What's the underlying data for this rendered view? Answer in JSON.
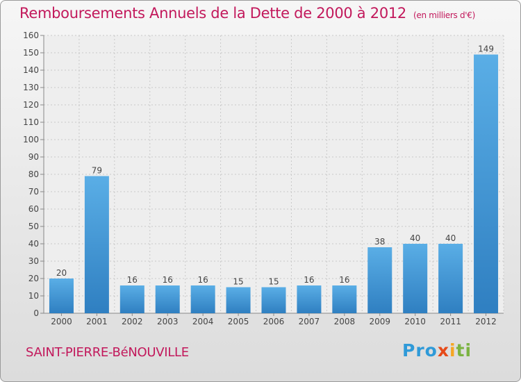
{
  "title": "Remboursements Annuels de la Dette de 2000 à 2012",
  "subtitle": "(en milliers d'€)",
  "place": "SAINT-PIERRE-BéNOUVILLE",
  "logo": [
    "Pro",
    "x",
    "i",
    "ti"
  ],
  "colors": {
    "accent": "#c2185b",
    "bar_top": "#5aaee6",
    "bar_bottom": "#2f7fc1"
  },
  "chart_data": {
    "type": "bar",
    "title": "Remboursements Annuels de la Dette de 2000 à 2012",
    "subtitle": "(en milliers d'€)",
    "categories": [
      "2000",
      "2001",
      "2002",
      "2003",
      "2004",
      "2005",
      "2006",
      "2007",
      "2008",
      "2009",
      "2010",
      "2011",
      "2012"
    ],
    "values": [
      20,
      79,
      16,
      16,
      16,
      15,
      15,
      16,
      16,
      38,
      40,
      40,
      149
    ],
    "data_labels": [
      "20",
      "79",
      "16",
      "16",
      "16",
      "15",
      "15",
      "16",
      "16",
      "38",
      "40",
      "40",
      "149"
    ],
    "ylim": [
      0,
      160
    ],
    "yticks": [
      0,
      10,
      20,
      30,
      40,
      50,
      60,
      70,
      80,
      90,
      100,
      110,
      120,
      130,
      140,
      150,
      160
    ],
    "ytick_labels": [
      "0",
      "10",
      "20",
      "30",
      "40",
      "50",
      "60",
      "70",
      "80",
      "90",
      "100",
      "110",
      "120",
      "130",
      "140",
      "150",
      "160"
    ],
    "grid": true,
    "xlabel": "",
    "ylabel": ""
  }
}
